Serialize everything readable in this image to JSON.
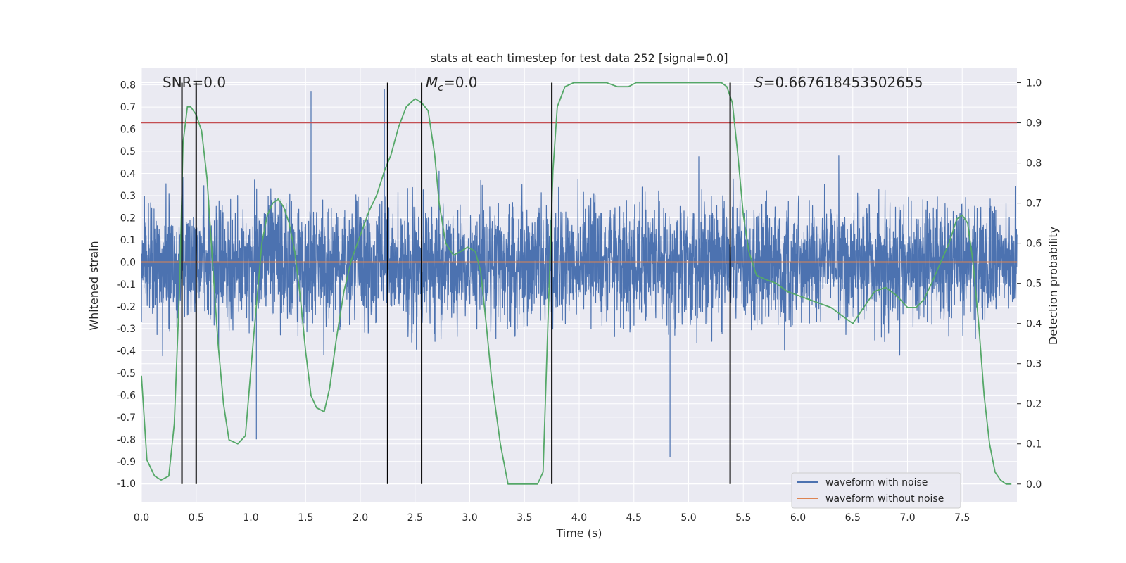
{
  "chart_data": {
    "type": "line",
    "title": "stats at each timestep for test data 252 [signal=0.0]",
    "xlabel": "Time (s)",
    "ylabel": "Whitened strain",
    "y2label": "Detection probability",
    "xlim": [
      0.0,
      8.0
    ],
    "ylim": [
      -1.085,
      0.875
    ],
    "y2lim": [
      -0.046,
      1.036
    ],
    "xticks": [
      "0.0",
      "0.5",
      "1.0",
      "1.5",
      "2.0",
      "2.5",
      "3.0",
      "3.5",
      "4.0",
      "4.5",
      "5.0",
      "5.5",
      "6.0",
      "6.5",
      "7.0",
      "7.5"
    ],
    "yticks": [
      "0.8",
      "0.7",
      "0.6",
      "0.5",
      "0.4",
      "0.3",
      "0.2",
      "0.1",
      "0.0",
      "-0.1",
      "-0.2",
      "-0.3",
      "-0.4",
      "-0.5",
      "-0.6",
      "-0.7",
      "-0.8",
      "-0.9",
      "-1.0"
    ],
    "y2ticks": [
      "1.0",
      "0.9",
      "0.8",
      "0.7",
      "0.6",
      "0.5",
      "0.4",
      "0.3",
      "0.2",
      "0.1",
      "0.0"
    ],
    "grid": true,
    "legend_position": "lower-right",
    "annotations": {
      "snr": "SNR=0.0",
      "mc_symbol": "M",
      "mc_sub": "c",
      "mc_value": "=0.0",
      "s_symbol": "S",
      "s_value": "=0.667618453502655"
    },
    "threshold": {
      "y2": 0.9,
      "color": "#c44e52"
    },
    "vertical_lines_x": [
      0.37,
      0.5,
      2.25,
      2.56,
      3.75,
      5.38
    ],
    "series": [
      {
        "name": "waveform with noise",
        "color": "#4c72b0",
        "envelope": {
          "typical_max": 0.5,
          "typical_min": -0.5,
          "peak_max": 0.78,
          "peak_min": -1.0
        },
        "notable_extremes": [
          {
            "x": 1.55,
            "y": 0.77
          },
          {
            "x": 2.22,
            "y": 0.78
          },
          {
            "x": 2.56,
            "y": 0.76
          },
          {
            "x": 3.75,
            "y": -1.0
          },
          {
            "x": 5.38,
            "y": 0.73
          },
          {
            "x": 4.83,
            "y": -0.88
          },
          {
            "x": 0.37,
            "y": -0.79
          },
          {
            "x": 1.05,
            "y": -0.8
          }
        ]
      },
      {
        "name": "waveform without noise",
        "color": "#dd8452",
        "x": [
          0.0,
          8.0
        ],
        "y": [
          0.0,
          0.0
        ]
      },
      {
        "name": "detection_probability",
        "axis": "right",
        "color": "#55a868",
        "x": [
          0.0,
          0.05,
          0.12,
          0.18,
          0.25,
          0.3,
          0.35,
          0.38,
          0.42,
          0.45,
          0.5,
          0.55,
          0.6,
          0.65,
          0.7,
          0.75,
          0.8,
          0.88,
          0.95,
          1.02,
          1.1,
          1.15,
          1.2,
          1.25,
          1.3,
          1.35,
          1.4,
          1.45,
          1.5,
          1.55,
          1.6,
          1.67,
          1.72,
          1.78,
          1.85,
          1.92,
          2.0,
          2.08,
          2.15,
          2.22,
          2.28,
          2.35,
          2.42,
          2.5,
          2.56,
          2.62,
          2.68,
          2.72,
          2.78,
          2.85,
          2.92,
          2.98,
          3.05,
          3.1,
          3.15,
          3.2,
          3.28,
          3.35,
          3.42,
          3.5,
          3.57,
          3.62,
          3.67,
          3.72,
          3.76,
          3.8,
          3.87,
          3.95,
          4.05,
          4.15,
          4.25,
          4.35,
          4.45,
          4.52,
          4.6,
          4.8,
          5.0,
          5.2,
          5.3,
          5.35,
          5.4,
          5.45,
          5.5,
          5.55,
          5.62,
          5.7,
          5.8,
          5.9,
          6.0,
          6.1,
          6.2,
          6.3,
          6.4,
          6.5,
          6.6,
          6.7,
          6.8,
          6.9,
          7.0,
          7.08,
          7.15,
          7.22,
          7.3,
          7.38,
          7.45,
          7.5,
          7.55,
          7.6,
          7.65,
          7.7,
          7.75,
          7.8,
          7.85,
          7.9,
          7.95
        ],
        "y": [
          0.27,
          0.06,
          0.02,
          0.01,
          0.02,
          0.15,
          0.5,
          0.85,
          0.94,
          0.94,
          0.92,
          0.88,
          0.76,
          0.55,
          0.35,
          0.2,
          0.11,
          0.1,
          0.12,
          0.35,
          0.6,
          0.67,
          0.7,
          0.71,
          0.69,
          0.65,
          0.58,
          0.47,
          0.33,
          0.22,
          0.19,
          0.18,
          0.24,
          0.36,
          0.48,
          0.56,
          0.62,
          0.68,
          0.72,
          0.78,
          0.82,
          0.89,
          0.94,
          0.96,
          0.95,
          0.93,
          0.82,
          0.7,
          0.6,
          0.57,
          0.58,
          0.59,
          0.58,
          0.53,
          0.4,
          0.26,
          0.1,
          0.0,
          -0.0,
          -0.0,
          -0.0,
          0.0,
          0.03,
          0.45,
          0.78,
          0.94,
          0.99,
          1.0,
          1.0,
          1.0,
          1.0,
          0.99,
          0.99,
          1.0,
          1.0,
          1.0,
          1.0,
          1.0,
          1.0,
          0.99,
          0.95,
          0.82,
          0.67,
          0.58,
          0.52,
          0.51,
          0.5,
          0.48,
          0.47,
          0.46,
          0.45,
          0.44,
          0.42,
          0.4,
          0.44,
          0.48,
          0.49,
          0.47,
          0.44,
          0.44,
          0.46,
          0.5,
          0.55,
          0.6,
          0.66,
          0.67,
          0.65,
          0.55,
          0.4,
          0.22,
          0.1,
          0.03,
          0.01,
          0.0,
          0.0
        ]
      }
    ]
  }
}
